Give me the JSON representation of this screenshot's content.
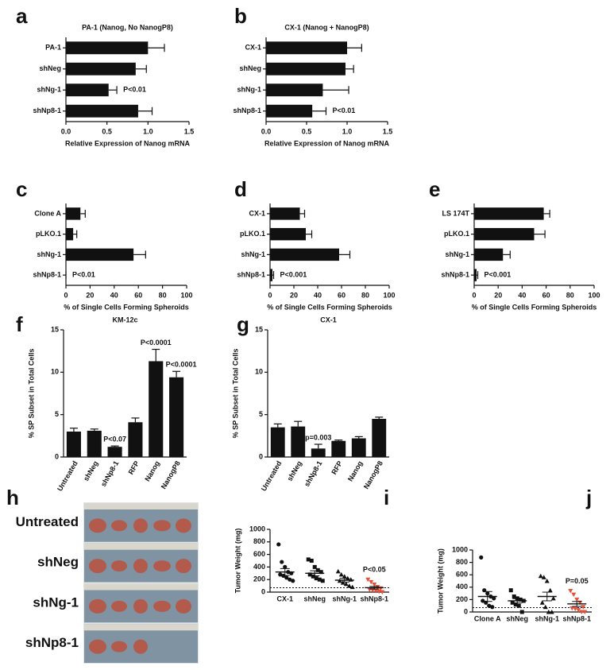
{
  "chart_data": [
    {
      "type": "bar",
      "orientation": "horizontal",
      "panel_label": "a",
      "title": "PA-1 (Nanog, No NanogP8)",
      "categories": [
        "PA-1",
        "shNeg",
        "shNg-1",
        "shNp8-1"
      ],
      "values": [
        1.0,
        0.85,
        0.52,
        0.88
      ],
      "errors": [
        0.2,
        0.13,
        0.1,
        0.17
      ],
      "annotations": [
        null,
        null,
        "P<0.01",
        null
      ],
      "xlabel": "Relative Expression of Nanog mRNA",
      "xlim": [
        0,
        1.5
      ],
      "xticks": [
        {
          "value": 0,
          "label": "0.0"
        },
        0.5,
        {
          "value": 1,
          "label": "1.0"
        },
        1.5
      ],
      "color": "#111111"
    },
    {
      "type": "bar",
      "orientation": "horizontal",
      "panel_label": "b",
      "title": "CX-1 (Nanog + NanogP8)",
      "categories": [
        "CX-1",
        "shNeg",
        "shNg-1",
        "shNp8-1"
      ],
      "values": [
        1.0,
        0.98,
        0.7,
        0.57
      ],
      "errors": [
        0.18,
        0.1,
        0.32,
        0.17
      ],
      "annotations": [
        null,
        null,
        null,
        "P<0.01"
      ],
      "xlabel": "Relative Expression of Nanog mRNA",
      "xlim": [
        0,
        1.5
      ],
      "xticks": [
        {
          "value": 0,
          "label": "0.0"
        },
        0.5,
        {
          "value": 1,
          "label": "1.0"
        },
        1.5
      ],
      "color": "#111111"
    },
    {
      "type": "bar",
      "orientation": "horizontal",
      "panel_label": "c",
      "categories": [
        "Clone A",
        "pLKO.1",
        "shNg-1",
        "shNp8-1"
      ],
      "values": [
        12,
        6,
        56,
        0
      ],
      "errors": [
        4,
        3,
        10,
        0
      ],
      "annotations": [
        null,
        null,
        null,
        "P<0.01"
      ],
      "xlabel": "% of Single Cells Forming Spheroids",
      "xlim": [
        0,
        100
      ],
      "xticks": [
        0,
        20,
        40,
        60,
        80,
        100
      ],
      "color": "#111111"
    },
    {
      "type": "bar",
      "orientation": "horizontal",
      "panel_label": "d",
      "categories": [
        "CX-1",
        "pLKO.1",
        "shNg-1",
        "shNp8-1"
      ],
      "values": [
        25,
        30,
        58,
        2
      ],
      "errors": [
        4,
        5,
        9,
        1
      ],
      "annotations": [
        null,
        null,
        null,
        "P<0.001"
      ],
      "xlabel": "% of Single Cells Forming Spheroids",
      "xlim": [
        0,
        100
      ],
      "xticks": [
        0,
        20,
        40,
        60,
        80,
        100
      ],
      "color": "#111111"
    },
    {
      "type": "bar",
      "orientation": "horizontal",
      "panel_label": "e",
      "categories": [
        "LS 174T",
        "pLKO.1",
        "shNg-1",
        "shNp8-1"
      ],
      "values": [
        58,
        50,
        24,
        2
      ],
      "errors": [
        5,
        9,
        6,
        1
      ],
      "annotations": [
        null,
        null,
        null,
        "P<0.001"
      ],
      "xlabel": "% of Single Cells Forming Spheroids",
      "xlim": [
        0,
        100
      ],
      "xticks": [
        0,
        20,
        40,
        60,
        80,
        100
      ],
      "color": "#111111"
    },
    {
      "type": "bar",
      "orientation": "vertical",
      "panel_label": "f",
      "title": "KM-12c",
      "ylabel": "% SP Subset in Total Cells",
      "categories": [
        "Untreated",
        "shNeg",
        "shNp8-1",
        "RFP",
        "Nanog",
        "NanogP8"
      ],
      "values": [
        3.0,
        3.1,
        1.2,
        4.1,
        11.3,
        9.4
      ],
      "errors": [
        0.4,
        0.2,
        0.1,
        0.5,
        1.4,
        0.7
      ],
      "annotations": [
        null,
        null,
        "P<0.07",
        null,
        "P<0.0001",
        "P<0.0001"
      ],
      "ylim": [
        0,
        15
      ],
      "yticks": [
        0,
        5,
        10,
        15
      ],
      "color": "#111111"
    },
    {
      "type": "bar",
      "orientation": "vertical",
      "panel_label": "g",
      "title": "CX-1",
      "ylabel": "% SP Subset in Total Cells",
      "categories": [
        "Untreated",
        "shNeg",
        "shNp8-1",
        "RFP",
        "Nanog",
        "NanogP8"
      ],
      "values": [
        3.5,
        3.6,
        1.0,
        1.9,
        2.2,
        4.5
      ],
      "errors": [
        0.4,
        0.6,
        0.5,
        0.1,
        0.2,
        0.2
      ],
      "annotations": [
        null,
        null,
        "p=0.003",
        null,
        null,
        null
      ],
      "ylim": [
        0,
        15
      ],
      "yticks": [
        0,
        5,
        10,
        15
      ],
      "color": "#111111"
    },
    {
      "type": "photo",
      "panel_label": "h",
      "labels": [
        "Untreated",
        "shNeg",
        "shNg-1",
        "shNp8-1"
      ]
    },
    {
      "type": "dotplot",
      "panel_label": "i",
      "ylabel": "Tumor Weight (mg)",
      "categories": [
        "CX-1",
        "shNeg",
        "shNg-1",
        "shNp8-1"
      ],
      "points": [
        [
          760,
          480,
          400,
          320,
          300,
          280,
          260,
          230,
          200,
          180
        ],
        [
          520,
          500,
          400,
          350,
          320,
          280,
          250,
          220,
          200,
          180
        ],
        [
          330,
          280,
          250,
          220,
          200,
          180,
          150,
          130,
          100,
          80
        ],
        [
          200,
          160,
          120,
          80,
          60,
          40,
          30,
          20,
          10,
          0
        ]
      ],
      "means": [
        320,
        300,
        190,
        70
      ],
      "sems": [
        55,
        40,
        30,
        20
      ],
      "threshold": 70,
      "markers": [
        "circle",
        "square",
        "triangle",
        "triangle-down"
      ],
      "colors": [
        "#111111",
        "#111111",
        "#111111",
        "#e8503a"
      ],
      "annotations": [
        null,
        null,
        null,
        "P<0.05"
      ],
      "ylim": [
        0,
        1000
      ],
      "yticks": [
        0,
        200,
        400,
        600,
        800,
        1000
      ]
    },
    {
      "type": "dotplot",
      "panel_label": "j",
      "ylabel": "Tumor Weight (mg)",
      "categories": [
        "Clone A",
        "shNeg",
        "shNg-1",
        "shNp8-1"
      ],
      "points": [
        [
          880,
          350,
          300,
          250,
          220,
          180,
          150,
          100,
          80
        ],
        [
          350,
          250,
          220,
          200,
          180,
          150,
          120,
          100,
          0
        ],
        [
          580,
          560,
          500,
          350,
          220,
          150,
          80,
          0,
          0
        ],
        [
          340,
          280,
          200,
          150,
          80,
          60,
          50,
          30,
          0,
          0
        ]
      ],
      "means": [
        250,
        180,
        250,
        130
      ],
      "sems": [
        80,
        35,
        70,
        40
      ],
      "threshold": 70,
      "markers": [
        "circle",
        "square",
        "triangle",
        "triangle-down"
      ],
      "colors": [
        "#111111",
        "#111111",
        "#111111",
        "#e8503a"
      ],
      "annotations": [
        null,
        null,
        null,
        "P=0.05"
      ],
      "ylim": [
        0,
        1000
      ],
      "yticks": [
        0,
        200,
        400,
        600,
        800,
        1000
      ]
    }
  ]
}
